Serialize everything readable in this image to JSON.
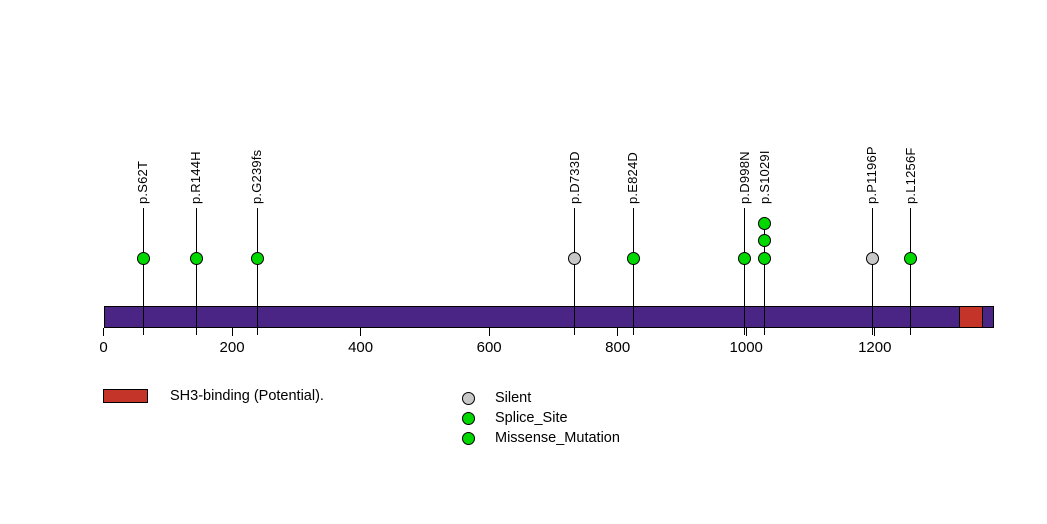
{
  "chart_data": {
    "type": "lollipop",
    "description": "Protein mutation lollipop plot",
    "xlim": [
      0,
      1386
    ],
    "x_ticks": [
      0,
      200,
      400,
      600,
      800,
      1000,
      1200
    ],
    "protein_bar": {
      "start": 0,
      "end": 1386,
      "color": "#4B2585"
    },
    "domains": [
      {
        "label": "SH3-binding (Potential).",
        "start": 1331,
        "end": 1369,
        "color": "#C53428"
      }
    ],
    "mutations": [
      {
        "label": "p.S62T",
        "position": 62,
        "count": 1,
        "fill": "#00D800"
      },
      {
        "label": "p.R144H",
        "position": 144,
        "count": 1,
        "fill": "#00D800"
      },
      {
        "label": "p.G239fs",
        "position": 239,
        "count": 1,
        "fill": "#00D800"
      },
      {
        "label": "p.D733D",
        "position": 733,
        "count": 1,
        "fill": "#C8C8C8"
      },
      {
        "label": "p.E824D",
        "position": 824,
        "count": 1,
        "fill": "#00D800"
      },
      {
        "label": "p.D998N",
        "position": 998,
        "count": 1,
        "fill": "#00D800"
      },
      {
        "label": "p.S1029I",
        "position": 1029,
        "count": 3,
        "fill": "#00D800"
      },
      {
        "label": "p.P1196P",
        "position": 1196,
        "count": 1,
        "fill": "#C8C8C8"
      },
      {
        "label": "p.L1256F",
        "position": 1256,
        "count": 1,
        "fill": "#00D800"
      }
    ],
    "legend_domain": [
      {
        "label": "SH3-binding (Potential).",
        "color": "#C53428"
      }
    ],
    "legend_mutation_types": [
      {
        "label": "Silent",
        "color": "#C8C8C8"
      },
      {
        "label": "Splice_Site",
        "color": "#00D800"
      },
      {
        "label": "Missense_Mutation",
        "color": "#00D800"
      }
    ],
    "colors": {
      "bar": "#4B2585",
      "domain": "#C53428",
      "silent": "#C8C8C8",
      "mutation_green": "#00D800",
      "stem": "#000000"
    }
  }
}
